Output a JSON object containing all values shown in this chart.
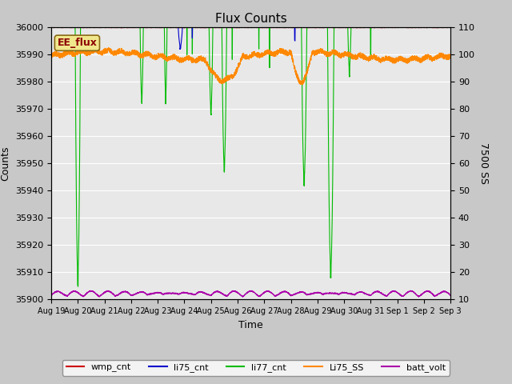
{
  "title": "Flux Counts",
  "xlabel": "Time",
  "ylabel_left": "Counts",
  "ylabel_right": "7500 SS",
  "ylim_left": [
    35900,
    36000
  ],
  "ylim_right": [
    10,
    110
  ],
  "annotation_text": "EE_flux",
  "bg_color": "#c8c8c8",
  "plot_bg_color": "#e8e8e8",
  "colors": {
    "wmp_cnt": "#cc0000",
    "li75_cnt": "#0000cc",
    "li77_cnt": "#00bb00",
    "Li75_SS": "#ff8800",
    "batt_volt": "#aa00aa"
  },
  "xtick_labels": [
    "Aug 19",
    "Aug 20",
    "Aug 21",
    "Aug 22",
    "Aug 23",
    "Aug 24",
    "Aug 25",
    "Aug 26",
    "Aug 27",
    "Aug 28",
    "Aug 29",
    "Aug 30",
    "Aug 31",
    "Sep 1",
    "Sep 2",
    "Sep 3"
  ],
  "ytick_left": [
    35900,
    35910,
    35920,
    35930,
    35940,
    35950,
    35960,
    35970,
    35980,
    35990,
    36000
  ],
  "ytick_right": [
    10,
    20,
    30,
    40,
    50,
    60,
    70,
    80,
    90,
    100,
    110
  ]
}
